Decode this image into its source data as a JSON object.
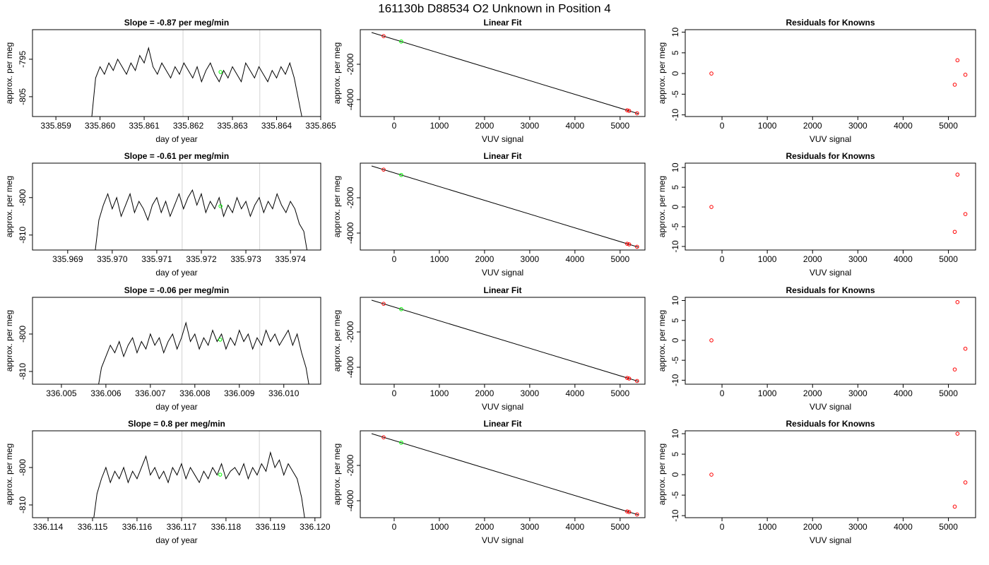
{
  "title": "161130b     D88534   O2 Unknown in Position  4",
  "chart_data": [
    {
      "type": "line",
      "title": "Slope =  -0.87  per meg/min",
      "xlabel": "day of year",
      "ylabel": "approx. per meg",
      "color": "#000000",
      "x": [
        335.8598,
        335.8599,
        335.86,
        335.8601,
        335.8602,
        335.8603,
        335.8604,
        335.8605,
        335.8606,
        335.8607,
        335.8608,
        335.8609,
        335.861,
        335.8611,
        335.8612,
        335.8613,
        335.8614,
        335.8615,
        335.8616,
        335.8617,
        335.8618,
        335.8619,
        335.862,
        335.8621,
        335.8622,
        335.8623,
        335.8624,
        335.8625,
        335.8626,
        335.8627,
        335.8628,
        335.8629,
        335.863,
        335.8631,
        335.8632,
        335.8633,
        335.8634,
        335.8635,
        335.8636,
        335.8637,
        335.8638,
        335.8639,
        335.864,
        335.8641,
        335.8642,
        335.8643,
        335.8644,
        335.8645,
        335.8646
      ],
      "values": [
        -812,
        -800,
        -797,
        -799,
        -796,
        -798,
        -795,
        -797,
        -799,
        -796,
        -798,
        -794,
        -796,
        -792,
        -797,
        -799,
        -796,
        -798,
        -800,
        -797,
        -799,
        -796,
        -798,
        -800,
        -797,
        -801,
        -798,
        -796,
        -799,
        -801,
        -798,
        -800,
        -797,
        -799,
        -801,
        -796,
        -798,
        -800,
        -797,
        -799,
        -801,
        -798,
        -800,
        -797,
        -799,
        -796,
        -800,
        -806,
        -812
      ],
      "xlim": [
        335.85847,
        335.865
      ],
      "ylim": [
        -810.3,
        -787.1
      ],
      "xticks": [
        335.859,
        {
          "value": 335.86,
          "label": "335.860"
        },
        335.861,
        335.862,
        335.863,
        335.864,
        335.865
      ],
      "yticks": [
        -795,
        -805
      ],
      "vlines": [
        335.86188,
        335.86362
      ],
      "vline_color": "#d3d3d3",
      "marker": {
        "x": 335.86273,
        "y": -798.4,
        "color": "#00ff00"
      }
    },
    {
      "type": "scatter",
      "title": "Linear Fit",
      "xlabel": "VUV signal",
      "ylabel": "approx. per meg",
      "series": [
        {
          "color": "#ff0000",
          "x": [
            -234,
            5156,
            5200,
            5375
          ],
          "values": [
            -407,
            -4605,
            -4640,
            -4776
          ]
        },
        {
          "color": "#00ff00",
          "x": [
            156
          ],
          "values": [
            -711
          ]
        }
      ],
      "fit": {
        "color": "#000000",
        "x": [
          -500,
          5406
        ],
        "values": [
          -200,
          -4800
        ]
      },
      "xlim": [
        -750,
        5550
      ],
      "ylim": [
        -4960,
        -40
      ],
      "xticks": [
        0,
        1000,
        2000,
        3000,
        4000,
        5000
      ],
      "yticks": [
        -2000,
        -4000
      ]
    },
    {
      "type": "scatter",
      "title": "Residuals for Knowns",
      "xlabel": "VUV signal",
      "ylabel": "approx. per meg",
      "series": [
        {
          "color": "#ff0000",
          "x": [
            -234,
            5140,
            5200,
            5375
          ],
          "values": [
            0,
            -2.7,
            3.2,
            -0.3
          ]
        }
      ],
      "xlim": [
        -812,
        5600
      ],
      "ylim": [
        -10.4,
        10.6
      ],
      "xticks": [
        0,
        1000,
        2000,
        3000,
        4000,
        5000
      ],
      "yticks": [
        -10,
        -5,
        0,
        5,
        10
      ]
    },
    {
      "type": "line",
      "title": "Slope =  -0.61  per meg/min",
      "xlabel": "day of year",
      "ylabel": "approx. per meg",
      "color": "#000000",
      "x": [
        335.9696,
        335.9697,
        335.9698,
        335.9699,
        335.97,
        335.9701,
        335.9702,
        335.9703,
        335.9704,
        335.9705,
        335.9706,
        335.9707,
        335.9708,
        335.9709,
        335.971,
        335.9711,
        335.9712,
        335.9713,
        335.9714,
        335.9715,
        335.9716,
        335.9717,
        335.9718,
        335.9719,
        335.972,
        335.9721,
        335.9722,
        335.9723,
        335.9724,
        335.9725,
        335.9726,
        335.9727,
        335.9728,
        335.9729,
        335.973,
        335.9731,
        335.9732,
        335.9733,
        335.9734,
        335.9735,
        335.9736,
        335.9737,
        335.9738,
        335.9739,
        335.974,
        335.9741,
        335.9742,
        335.9743,
        335.9744
      ],
      "values": [
        -816,
        -806,
        -802,
        -799,
        -803,
        -800,
        -805,
        -802,
        -799,
        -804,
        -801,
        -803,
        -806,
        -802,
        -800,
        -804,
        -801,
        -805,
        -802,
        -799,
        -803,
        -800,
        -798,
        -802,
        -799,
        -804,
        -801,
        -803,
        -800,
        -805,
        -802,
        -804,
        -800,
        -803,
        -801,
        -805,
        -802,
        -800,
        -804,
        -801,
        -803,
        -799,
        -802,
        -804,
        -801,
        -803,
        -807,
        -809,
        -816
      ],
      "xlim": [
        335.96821,
        335.97468
      ],
      "ylim": [
        -814,
        -790.8
      ],
      "xticks": [
        335.969,
        {
          "value": 335.97,
          "label": "335.970"
        },
        335.971,
        335.972,
        335.973,
        335.974
      ],
      "yticks": [
        -800,
        -810
      ],
      "vlines": [
        335.97157,
        335.97331
      ],
      "vline_color": "#d3d3d3",
      "marker": {
        "x": 335.97243,
        "y": -802.3,
        "color": "#00ff00"
      }
    },
    {
      "type": "scatter",
      "title": "Linear Fit",
      "xlabel": "VUV signal",
      "ylabel": "approx. per meg",
      "series": [
        {
          "color": "#ff0000",
          "x": [
            -234,
            5156,
            5200,
            5375
          ],
          "values": [
            -407,
            -4605,
            -4640,
            -4776
          ]
        },
        {
          "color": "#00ff00",
          "x": [
            156
          ],
          "values": [
            -711
          ]
        }
      ],
      "fit": {
        "color": "#000000",
        "x": [
          -500,
          5406
        ],
        "values": [
          -200,
          -4800
        ]
      },
      "xlim": [
        -750,
        5550
      ],
      "ylim": [
        -4960,
        -40
      ],
      "xticks": [
        0,
        1000,
        2000,
        3000,
        4000,
        5000
      ],
      "yticks": [
        -2000,
        -4000
      ]
    },
    {
      "type": "scatter",
      "title": "Residuals for Knowns",
      "xlabel": "VUV signal",
      "ylabel": "approx. per meg",
      "series": [
        {
          "color": "#ff0000",
          "x": [
            -234,
            5140,
            5200,
            5375
          ],
          "values": [
            0,
            -6.3,
            8.2,
            -1.8
          ]
        }
      ],
      "xlim": [
        -812,
        5600
      ],
      "ylim": [
        -10.9,
        11.1
      ],
      "xticks": [
        0,
        1000,
        2000,
        3000,
        4000,
        5000
      ],
      "yticks": [
        -10,
        -5,
        0,
        5,
        10
      ]
    },
    {
      "type": "line",
      "title": "Slope =  -0.06  per meg/min",
      "xlabel": "day of year",
      "ylabel": "approx. per meg",
      "color": "#000000",
      "x": [
        336.0058,
        336.0059,
        336.006,
        336.0061,
        336.0062,
        336.0063,
        336.0064,
        336.0065,
        336.0066,
        336.0067,
        336.0068,
        336.0069,
        336.007,
        336.0071,
        336.0072,
        336.0073,
        336.0074,
        336.0075,
        336.0076,
        336.0077,
        336.0078,
        336.0079,
        336.008,
        336.0081,
        336.0082,
        336.0083,
        336.0084,
        336.0085,
        336.0086,
        336.0087,
        336.0088,
        336.0089,
        336.009,
        336.0091,
        336.0092,
        336.0093,
        336.0094,
        336.0095,
        336.0096,
        336.0097,
        336.0098,
        336.0099,
        336.01,
        336.0101,
        336.0102,
        336.0103,
        336.0104,
        336.0105,
        336.0106
      ],
      "values": [
        -816,
        -809,
        -806,
        -803,
        -805,
        -802,
        -806,
        -803,
        -801,
        -805,
        -802,
        -804,
        -800,
        -803,
        -801,
        -805,
        -802,
        -800,
        -804,
        -801,
        -797,
        -802,
        -800,
        -804,
        -801,
        -803,
        -799,
        -802,
        -800,
        -804,
        -801,
        -803,
        -799,
        -802,
        -800,
        -804,
        -801,
        -803,
        -799,
        -802,
        -800,
        -803,
        -801,
        -799,
        -803,
        -800,
        -805,
        -809,
        -816
      ],
      "xlim": [
        336.00435,
        336.01083
      ],
      "ylim": [
        -813.4,
        -790.2
      ],
      "xticks": [
        336.005,
        336.006,
        336.007,
        336.008,
        336.009,
        {
          "value": 336.01,
          "label": "336.010"
        }
      ],
      "yticks": [
        -800,
        -810
      ],
      "vlines": [
        336.00771,
        336.00946
      ],
      "vline_color": "#d3d3d3",
      "marker": {
        "x": 336.00857,
        "y": -801.5,
        "color": "#00ff00"
      }
    },
    {
      "type": "scatter",
      "title": "Linear Fit",
      "xlabel": "VUV signal",
      "ylabel": "approx. per meg",
      "series": [
        {
          "color": "#ff0000",
          "x": [
            -234,
            5156,
            5200,
            5375
          ],
          "values": [
            -407,
            -4605,
            -4640,
            -4776
          ]
        },
        {
          "color": "#00ff00",
          "x": [
            156
          ],
          "values": [
            -711
          ]
        }
      ],
      "fit": {
        "color": "#000000",
        "x": [
          -500,
          5406
        ],
        "values": [
          -200,
          -4800
        ]
      },
      "xlim": [
        -750,
        5550
      ],
      "ylim": [
        -4960,
        -40
      ],
      "xticks": [
        0,
        1000,
        2000,
        3000,
        4000,
        5000
      ],
      "yticks": [
        -2000,
        -4000
      ]
    },
    {
      "type": "scatter",
      "title": "Residuals for Knowns",
      "xlabel": "VUV signal",
      "ylabel": "approx. per meg",
      "series": [
        {
          "color": "#ff0000",
          "x": [
            -234,
            5140,
            5200,
            5375
          ],
          "values": [
            0,
            -7.3,
            9.6,
            -2.1
          ]
        }
      ],
      "xlim": [
        -812,
        5600
      ],
      "ylim": [
        -11,
        10.8
      ],
      "xticks": [
        0,
        1000,
        2000,
        3000,
        4000,
        5000
      ],
      "yticks": [
        -10,
        -5,
        0,
        5,
        10
      ]
    },
    {
      "type": "line",
      "title": "Slope =  0.8  per meg/min",
      "xlabel": "day of year",
      "ylabel": "approx. per meg",
      "color": "#000000",
      "x": [
        336.115,
        336.1151,
        336.1152,
        336.1153,
        336.1154,
        336.1155,
        336.1156,
        336.1157,
        336.1158,
        336.1159,
        336.116,
        336.1161,
        336.1162,
        336.1163,
        336.1164,
        336.1165,
        336.1166,
        336.1167,
        336.1168,
        336.1169,
        336.117,
        336.1171,
        336.1172,
        336.1173,
        336.1174,
        336.1175,
        336.1176,
        336.1177,
        336.1178,
        336.1179,
        336.118,
        336.1181,
        336.1182,
        336.1183,
        336.1184,
        336.1185,
        336.1186,
        336.1187,
        336.1188,
        336.1189,
        336.119,
        336.1191,
        336.1192,
        336.1193,
        336.1194,
        336.1195,
        336.1196,
        336.1197,
        336.1198
      ],
      "values": [
        -816,
        -807,
        -803,
        -800,
        -804,
        -801,
        -803,
        -800,
        -804,
        -801,
        -803,
        -800,
        -797,
        -802,
        -800,
        -803,
        -801,
        -804,
        -800,
        -802,
        -799,
        -803,
        -800,
        -802,
        -804,
        -801,
        -803,
        -800,
        -802,
        -799,
        -803,
        -801,
        -800,
        -802,
        -799,
        -803,
        -800,
        -802,
        -799,
        -801,
        -796,
        -800,
        -798,
        -802,
        -799,
        -801,
        -803,
        -808,
        -816
      ],
      "xlim": [
        336.11365,
        336.12013
      ],
      "ylim": [
        -813.4,
        -790.2
      ],
      "xticks": [
        336.114,
        336.115,
        336.116,
        336.117,
        336.118,
        336.119,
        {
          "value": 336.12,
          "label": "336.120"
        }
      ],
      "yticks": [
        -800,
        -810
      ],
      "vlines": [
        336.11701,
        336.11875
      ],
      "vline_color": "#d3d3d3",
      "marker": {
        "x": 336.11787,
        "y": -801.9,
        "color": "#00ff00"
      }
    },
    {
      "type": "scatter",
      "title": "Linear Fit",
      "xlabel": "VUV signal",
      "ylabel": "approx. per meg",
      "series": [
        {
          "color": "#ff0000",
          "x": [
            -234,
            5156,
            5200,
            5375
          ],
          "values": [
            -407,
            -4605,
            -4640,
            -4776
          ]
        },
        {
          "color": "#00ff00",
          "x": [
            156
          ],
          "values": [
            -711
          ]
        }
      ],
      "fit": {
        "color": "#000000",
        "x": [
          -500,
          5406
        ],
        "values": [
          -200,
          -4800
        ]
      },
      "xlim": [
        -750,
        5550
      ],
      "ylim": [
        -4960,
        -40
      ],
      "xticks": [
        0,
        1000,
        2000,
        3000,
        4000,
        5000
      ],
      "yticks": [
        -2000,
        -4000
      ]
    },
    {
      "type": "scatter",
      "title": "Residuals for Knowns",
      "xlabel": "VUV signal",
      "ylabel": "approx. per meg",
      "series": [
        {
          "color": "#ff0000",
          "x": [
            -234,
            5140,
            5200,
            5375
          ],
          "values": [
            0,
            -7.8,
            10,
            -1.9
          ]
        }
      ],
      "xlim": [
        -812,
        5600
      ],
      "ylim": [
        -10.5,
        10.7
      ],
      "xticks": [
        0,
        1000,
        2000,
        3000,
        4000,
        5000
      ],
      "yticks": [
        -10,
        -5,
        0,
        5,
        10
      ]
    }
  ]
}
